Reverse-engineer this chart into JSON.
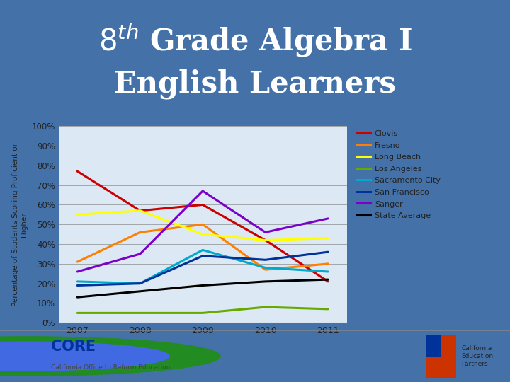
{
  "title_line1": "8ᵗʰ Grade Algebra I",
  "title_line2": "English Learners",
  "ylabel": "Percentage of Students Scoring Proficient or\nHigher",
  "years": [
    2007,
    2008,
    2009,
    2010,
    2011
  ],
  "series": [
    {
      "label": "Clovis",
      "color": "#CC0000",
      "values": [
        77,
        57,
        60,
        42,
        21
      ]
    },
    {
      "label": "Fresno",
      "color": "#FF8000",
      "values": [
        31,
        46,
        50,
        27,
        30
      ]
    },
    {
      "label": "Long Beach",
      "color": "#FFFF00",
      "values": [
        55,
        57,
        45,
        42,
        43
      ]
    },
    {
      "label": "Los Angeles",
      "color": "#66AA00",
      "values": [
        5,
        5,
        5,
        8,
        7
      ]
    },
    {
      "label": "Sacramento City",
      "color": "#00AACC",
      "values": [
        21,
        20,
        37,
        28,
        26
      ]
    },
    {
      "label": "San Francisco",
      "color": "#003399",
      "values": [
        19,
        20,
        34,
        32,
        36
      ]
    },
    {
      "label": "Sanger",
      "color": "#7B00CC",
      "values": [
        26,
        35,
        67,
        46,
        53
      ]
    },
    {
      "label": "State Average",
      "color": "#000000",
      "values": [
        13,
        16,
        19,
        21,
        22
      ]
    }
  ],
  "ylim": [
    0,
    100
  ],
  "yticks": [
    0,
    10,
    20,
    30,
    40,
    50,
    60,
    70,
    80,
    90,
    100
  ],
  "background_outer": "#4472A8",
  "background_chart": "#DCE9F5",
  "title_color": "#FFFFFF",
  "title_fontsize": 30,
  "footer_bg": "#FFFFFF",
  "legend_labels_color": "#222222"
}
